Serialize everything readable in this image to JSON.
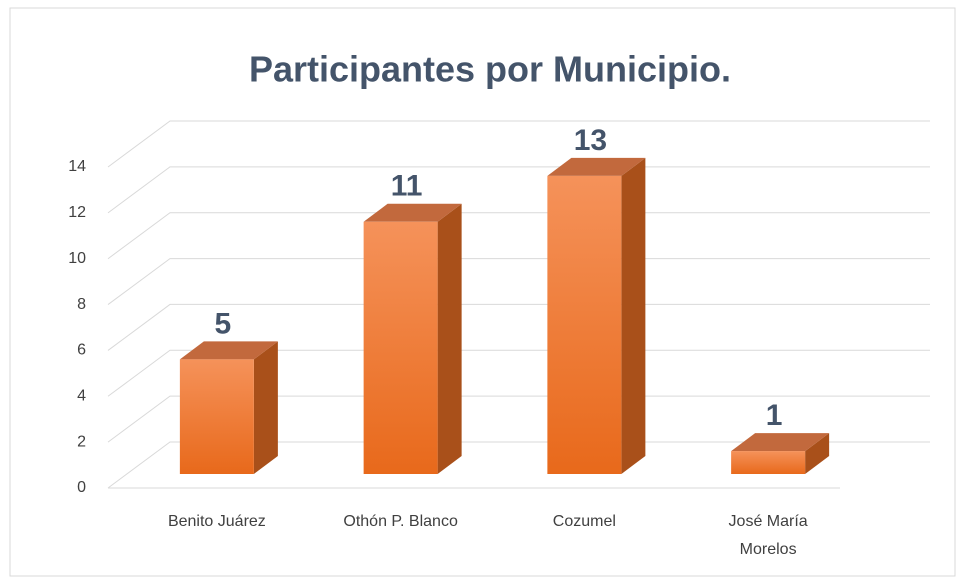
{
  "chart_data": {
    "type": "bar3d",
    "title": "Participantes por Municipio.",
    "categories": [
      "Benito Juárez",
      "Othón P. Blanco",
      "Cozumel",
      "José María Morelos"
    ],
    "values": [
      5,
      11,
      13,
      1
    ],
    "color": "#f07f2c",
    "ylim": [
      0,
      14
    ],
    "yticks": [
      0,
      2,
      4,
      6,
      8,
      10,
      12,
      14
    ],
    "grid": true
  }
}
